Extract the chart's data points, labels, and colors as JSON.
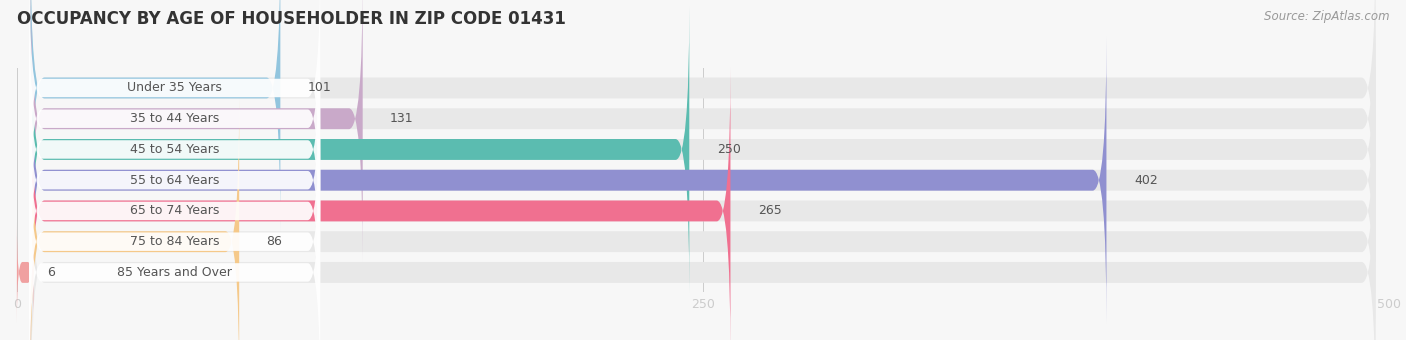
{
  "title": "OCCUPANCY BY AGE OF HOUSEHOLDER IN ZIP CODE 01431",
  "source": "Source: ZipAtlas.com",
  "categories": [
    "Under 35 Years",
    "35 to 44 Years",
    "45 to 54 Years",
    "55 to 64 Years",
    "65 to 74 Years",
    "75 to 84 Years",
    "85 Years and Over"
  ],
  "values": [
    101,
    131,
    250,
    402,
    265,
    86,
    6
  ],
  "bar_colors": [
    "#92C5DE",
    "#C9A9C9",
    "#5BBCB0",
    "#9090D0",
    "#F07090",
    "#F5C98A",
    "#F0A0A0"
  ],
  "bg_color": "#f7f7f7",
  "bar_bg_color": "#e8e8e8",
  "xlim": [
    0,
    500
  ],
  "xticks": [
    0,
    250,
    500
  ],
  "title_fontsize": 12,
  "label_fontsize": 9,
  "value_fontsize": 9,
  "source_fontsize": 8.5
}
